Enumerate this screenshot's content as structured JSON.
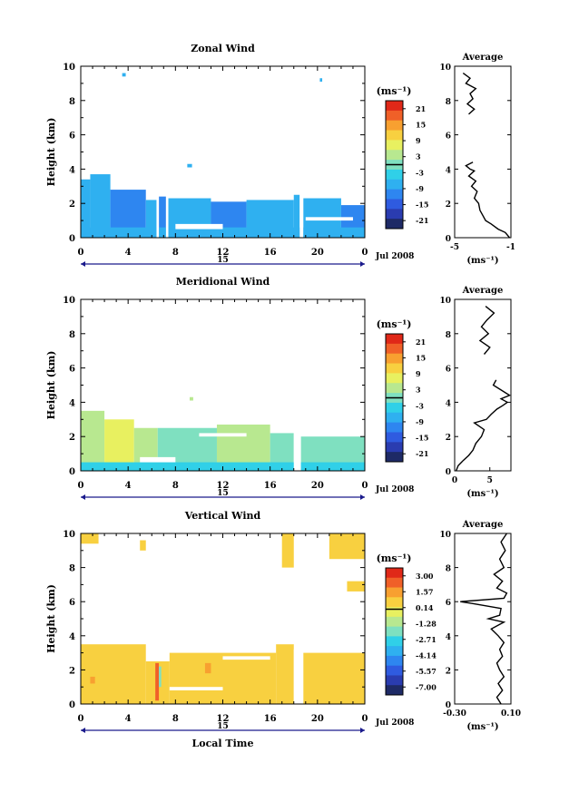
{
  "x_axis": {
    "ticks": [
      "0",
      "4",
      "8",
      "12",
      "16",
      "20",
      "0"
    ],
    "day_label": "15",
    "month_label": "Jul 2008",
    "xlabel": "Local Time"
  },
  "units_label": "(ms⁻¹)",
  "avg_title": "Average",
  "colors": {
    "nodata": "#ffffff",
    "frame": "#000000",
    "arrow": "#1a1a8c",
    "ramp": [
      "#1e2a66",
      "#2a3cb0",
      "#2f5be0",
      "#2e86f0",
      "#2fb0f0",
      "#30d0e8",
      "#7fe0c0",
      "#b8e890",
      "#e8f060",
      "#f8d040",
      "#f8a030",
      "#f06028",
      "#e02818"
    ]
  },
  "chart_data": [
    {
      "type": "heatmap",
      "title": "Zonal Wind",
      "ylabel": "Height (km)",
      "xlim": [
        0,
        24
      ],
      "ylim": [
        0,
        10
      ],
      "y_ticks": [
        "0",
        "2",
        "4",
        "6",
        "8",
        "10"
      ],
      "colorbar": {
        "units": "(ms⁻¹)",
        "labels": [
          "21",
          "15",
          "9",
          "3",
          "-3",
          "-9",
          "-15",
          "-21"
        ],
        "range": [
          -24,
          24
        ]
      },
      "cells": [
        {
          "t0": 0.0,
          "t1": 0.8,
          "h0": 0.1,
          "h1": 3.4,
          "v": -6
        },
        {
          "t0": 0.8,
          "t1": 2.5,
          "h0": 0.1,
          "h1": 3.7,
          "v": -9
        },
        {
          "t0": 2.5,
          "t1": 5.5,
          "h0": 0.1,
          "h1": 2.8,
          "v": -11
        },
        {
          "t0": 5.5,
          "t1": 6.4,
          "h0": 0.3,
          "h1": 2.2,
          "v": -9
        },
        {
          "t0": 6.6,
          "t1": 7.2,
          "h0": 0.2,
          "h1": 2.4,
          "v": -12
        },
        {
          "t0": 7.4,
          "t1": 11.0,
          "h0": 0.3,
          "h1": 2.3,
          "v": -9
        },
        {
          "t0": 11.0,
          "t1": 14.0,
          "h0": 0.2,
          "h1": 2.1,
          "v": -11
        },
        {
          "t0": 14.0,
          "t1": 18.0,
          "h0": 0.2,
          "h1": 2.2,
          "v": -9
        },
        {
          "t0": 18.0,
          "t1": 18.5,
          "h0": 0.2,
          "h1": 2.5,
          "v": -6
        },
        {
          "t0": 18.8,
          "t1": 22.0,
          "h0": 0.1,
          "h1": 2.3,
          "v": -9
        },
        {
          "t0": 22.0,
          "t1": 24.0,
          "h0": 0.1,
          "h1": 1.9,
          "v": -11
        },
        {
          "t0": 0.0,
          "t1": 24.0,
          "h0": 0.0,
          "h1": 0.6,
          "v": -6
        },
        {
          "t0": 3.5,
          "t1": 3.8,
          "h0": 9.4,
          "h1": 9.6,
          "v": -9
        },
        {
          "t0": 9.0,
          "t1": 9.4,
          "h0": 4.1,
          "h1": 4.3,
          "v": -6
        },
        {
          "t0": 20.2,
          "t1": 20.4,
          "h0": 9.1,
          "h1": 9.3,
          "v": -9
        }
      ],
      "gaps": [
        {
          "t0": 6.4,
          "t1": 6.6,
          "h0": 0.0,
          "h1": 3.0
        },
        {
          "t0": 7.2,
          "t1": 7.4,
          "h0": 0.0,
          "h1": 2.5
        },
        {
          "t0": 18.5,
          "t1": 18.8,
          "h0": 0.0,
          "h1": 2.6
        },
        {
          "t0": 8.0,
          "t1": 12.0,
          "h0": 0.5,
          "h1": 0.8
        },
        {
          "t0": 19.0,
          "t1": 23.0,
          "h0": 1.0,
          "h1": 1.2
        }
      ],
      "average": {
        "xlim": [
          -5,
          -1
        ],
        "x_ticks": [
          "-5",
          "-1"
        ],
        "units": "(ms⁻¹)",
        "h": [
          0.0,
          0.3,
          0.5,
          0.8,
          1.0,
          1.3,
          1.6,
          2.0,
          2.3,
          2.7,
          3.0,
          3.3,
          3.6,
          3.9,
          4.0,
          4.2,
          4.4,
          7.2,
          7.5,
          7.8,
          8.1,
          8.4,
          8.7,
          9.0,
          9.3,
          9.6
        ],
        "x": [
          -1.1,
          -1.4,
          -1.9,
          -2.4,
          -2.8,
          -3.0,
          -3.2,
          -3.3,
          -3.6,
          -3.4,
          -3.8,
          -3.5,
          -4.0,
          -3.6,
          -3.9,
          -4.2,
          -3.7,
          -4.0,
          -3.6,
          -4.1,
          -3.7,
          -3.9,
          -3.5,
          -4.2,
          -3.9,
          -4.4
        ]
      }
    },
    {
      "type": "heatmap",
      "title": "Meridional Wind",
      "ylabel": "Height (km)",
      "xlim": [
        0,
        24
      ],
      "ylim": [
        0,
        10
      ],
      "y_ticks": [
        "0",
        "2",
        "4",
        "6",
        "8",
        "10"
      ],
      "colorbar": {
        "units": "(ms⁻¹)",
        "labels": [
          "21",
          "15",
          "9",
          "3",
          "-3",
          "-9",
          "-15",
          "-21"
        ],
        "range": [
          -24,
          24
        ]
      },
      "cells": [
        {
          "t0": 0.0,
          "t1": 2.0,
          "h0": 0.1,
          "h1": 3.5,
          "v": 3
        },
        {
          "t0": 2.0,
          "t1": 4.5,
          "h0": 0.1,
          "h1": 3.0,
          "v": 6
        },
        {
          "t0": 4.5,
          "t1": 6.5,
          "h0": 0.2,
          "h1": 2.5,
          "v": 2
        },
        {
          "t0": 6.5,
          "t1": 11.5,
          "h0": 0.2,
          "h1": 2.5,
          "v": 1
        },
        {
          "t0": 11.5,
          "t1": 16.0,
          "h0": 0.3,
          "h1": 2.7,
          "v": 2
        },
        {
          "t0": 16.0,
          "t1": 18.0,
          "h0": 0.3,
          "h1": 2.2,
          "v": 1
        },
        {
          "t0": 18.6,
          "t1": 24.0,
          "h0": 0.1,
          "h1": 2.0,
          "v": 1
        },
        {
          "t0": 0.0,
          "t1": 24.0,
          "h0": 0.0,
          "h1": 0.5,
          "v": -2
        },
        {
          "t0": 9.2,
          "t1": 9.5,
          "h0": 4.1,
          "h1": 4.3,
          "v": 3
        }
      ],
      "gaps": [
        {
          "t0": 18.0,
          "t1": 18.6,
          "h0": 0.0,
          "h1": 2.4
        },
        {
          "t0": 5.0,
          "t1": 8.0,
          "h0": 0.5,
          "h1": 0.8
        },
        {
          "t0": 10.0,
          "t1": 14.0,
          "h0": 2.0,
          "h1": 2.2
        }
      ],
      "average": {
        "xlim": [
          0,
          8
        ],
        "x_ticks": [
          "0",
          "5"
        ],
        "units": "(ms⁻¹)",
        "h": [
          0.0,
          0.3,
          0.6,
          0.9,
          1.2,
          1.6,
          2.0,
          2.4,
          2.8,
          3.0,
          3.3,
          3.6,
          3.8,
          4.0,
          4.2,
          4.4,
          5.0,
          5.3,
          6.8,
          7.2,
          7.6,
          8.0,
          8.4,
          8.8,
          9.2,
          9.6
        ],
        "x": [
          0.2,
          0.5,
          1.2,
          2.0,
          2.6,
          3.0,
          3.8,
          4.2,
          2.8,
          4.5,
          5.2,
          6.0,
          6.8,
          7.5,
          6.6,
          7.8,
          5.5,
          5.9,
          4.2,
          5.0,
          3.6,
          4.8,
          3.8,
          4.6,
          5.6,
          4.4
        ]
      }
    },
    {
      "type": "heatmap",
      "title": "Vertical Wind",
      "ylabel": "Height (km)",
      "xlabel": "Local Time",
      "xlim": [
        0,
        24
      ],
      "ylim": [
        0,
        10
      ],
      "y_ticks": [
        "0",
        "2",
        "4",
        "6",
        "8",
        "10"
      ],
      "colorbar": {
        "units": "(ms⁻¹)",
        "labels": [
          "3.00",
          "1.57",
          "0.14",
          "-1.28",
          "-2.71",
          "-4.14",
          "-5.57",
          "-7.00"
        ],
        "range": [
          -7.72,
          3.72
        ]
      },
      "cells": [
        {
          "t0": 0.0,
          "t1": 5.5,
          "h0": 0.0,
          "h1": 3.5,
          "v": 0.3
        },
        {
          "t0": 5.5,
          "t1": 7.5,
          "h0": 0.0,
          "h1": 2.5,
          "v": 0.3
        },
        {
          "t0": 7.5,
          "t1": 16.5,
          "h0": 0.0,
          "h1": 3.0,
          "v": 0.3
        },
        {
          "t0": 16.5,
          "t1": 18.0,
          "h0": 0.0,
          "h1": 3.5,
          "v": 0.3
        },
        {
          "t0": 18.8,
          "t1": 24.0,
          "h0": 0.0,
          "h1": 3.0,
          "v": 0.3
        },
        {
          "t0": 6.3,
          "t1": 6.6,
          "h0": 0.2,
          "h1": 2.4,
          "v": 2.4
        },
        {
          "t0": 6.6,
          "t1": 6.8,
          "h0": 1.0,
          "h1": 2.2,
          "v": -2.0
        },
        {
          "t0": 10.5,
          "t1": 11.0,
          "h0": 1.8,
          "h1": 2.4,
          "v": 1.4
        },
        {
          "t0": 0.8,
          "t1": 1.2,
          "h0": 1.2,
          "h1": 1.6,
          "v": 1.2
        },
        {
          "t0": 21.0,
          "t1": 24.0,
          "h0": 8.5,
          "h1": 10.0,
          "v": 0.3
        },
        {
          "t0": 17.0,
          "t1": 18.0,
          "h0": 8.0,
          "h1": 10.0,
          "v": 0.3
        },
        {
          "t0": 0.0,
          "t1": 1.5,
          "h0": 9.4,
          "h1": 10.0,
          "v": 0.3
        },
        {
          "t0": 5.0,
          "t1": 5.5,
          "h0": 9.0,
          "h1": 9.6,
          "v": 0.3
        },
        {
          "t0": 22.5,
          "t1": 24.0,
          "h0": 6.6,
          "h1": 7.2,
          "v": 0.3
        }
      ],
      "gaps": [
        {
          "t0": 18.0,
          "t1": 18.8,
          "h0": 0.0,
          "h1": 3.2
        },
        {
          "t0": 7.5,
          "t1": 12.0,
          "h0": 0.8,
          "h1": 1.0
        },
        {
          "t0": 12.0,
          "t1": 16.0,
          "h0": 2.6,
          "h1": 2.8
        }
      ],
      "average": {
        "xlim": [
          -0.3,
          0.1
        ],
        "x_ticks": [
          "-0.30",
          "0.10"
        ],
        "units": "(ms⁻¹)",
        "h": [
          0.0,
          0.4,
          0.8,
          1.2,
          1.6,
          2.0,
          2.4,
          2.8,
          3.2,
          3.6,
          4.0,
          4.4,
          4.8,
          5.0,
          5.2,
          5.6,
          5.9,
          6.0,
          6.2,
          6.5,
          6.8,
          7.2,
          7.6,
          8.0,
          8.5,
          9.0,
          9.5,
          10.0
        ],
        "x": [
          0.03,
          0.0,
          0.04,
          0.01,
          0.05,
          0.02,
          0.0,
          0.04,
          0.02,
          0.05,
          0.01,
          -0.04,
          0.05,
          -0.06,
          0.02,
          0.03,
          -0.18,
          -0.26,
          0.05,
          0.07,
          0.0,
          0.04,
          -0.02,
          0.05,
          0.02,
          0.06,
          0.03,
          0.07
        ]
      }
    }
  ]
}
